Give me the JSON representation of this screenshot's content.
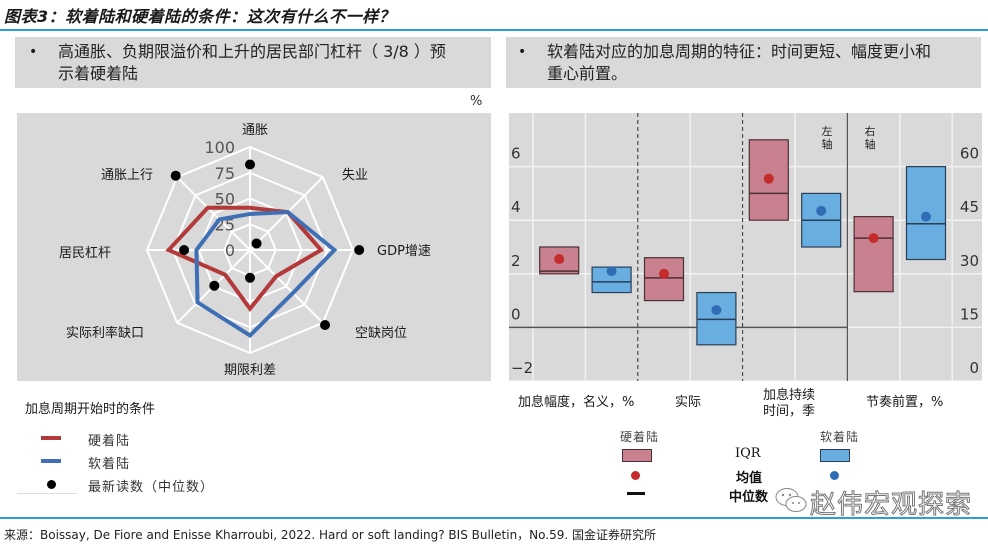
{
  "header": {
    "title": "图表3：软着陆和硬着陆的条件：这次有什么不一样？"
  },
  "left_panel": {
    "bullet": "•",
    "note_line1": "高通胀、负期限溢价和上升的居民部门杠杆（ 3/8 ）预",
    "note_line2": "示着硬着陆",
    "unit": "%",
    "legend": {
      "title": "加息周期开始时的条件",
      "items": [
        {
          "label": "硬着陆",
          "color": "#b33a3a",
          "marker": "line"
        },
        {
          "label": "软着陆",
          "color": "#3f6fb5",
          "marker": "line"
        },
        {
          "label": "最新读数（中位数）",
          "color": "#000000",
          "marker": "dot"
        }
      ]
    }
  },
  "right_panel": {
    "bullet": "•",
    "note_line1": "软着陆对应的加息周期的特征：时间更短、幅度更小和",
    "note_line2": "重心前置。",
    "left_axis_tag": "左轴",
    "right_axis_tag": "右轴",
    "legend": {
      "hard_label": "硬着陆",
      "soft_label": "软着陆",
      "iqr_label": "IQR",
      "mean_label": "均值",
      "median_label": "中位数"
    }
  },
  "footer": {
    "source": "来源：Boissay, De Fiore and Enisse Kharroubi, 2022. Hard or soft landing? BIS Bulletin，No.59. 国金证券研究所"
  },
  "watermark": {
    "text": "赵伟宏观探索"
  },
  "colors": {
    "hard_line": "#b33a3a",
    "soft_line": "#3f6fb5",
    "hard_box": "#c9808f",
    "soft_box": "#68aee0",
    "hard_dot": "#c42b2b",
    "soft_dot": "#2f6cb3",
    "panel_bg": "#d9d9d9",
    "accent_rule": "#2a9fd8"
  },
  "chart_data": [
    {
      "type": "radar",
      "title": "加息周期开始时的条件",
      "unit": "%",
      "axes": [
        "通胀",
        "失业",
        "GDP增速",
        "空缺岗位",
        "期限利差",
        "实际利率缺口",
        "居民杠杆",
        "通胀上行"
      ],
      "ticks": [
        0,
        25,
        50,
        75,
        100
      ],
      "range": [
        0,
        100
      ],
      "series": [
        {
          "name": "硬着陆",
          "values": [
            41,
            52,
            69,
            36,
            57,
            34,
            79,
            58
          ]
        },
        {
          "name": "软着陆",
          "values": [
            35,
            52,
            82,
            59,
            83,
            72,
            52,
            42
          ]
        },
        {
          "name": "最新读数（中位数）",
          "values": [
            83,
            9,
            106,
            103,
            27,
            49,
            64,
            102
          ],
          "style": "dots"
        }
      ],
      "legend_position": "bottom-left"
    },
    {
      "type": "boxplot",
      "categories": [
        "加息幅度，名义，%",
        "实际",
        "加息持续时间，季",
        "节奏前置，%"
      ],
      "category_axis": [
        "left",
        "left",
        "left",
        "right"
      ],
      "left_axis": {
        "ticks": [
          -2,
          0,
          2,
          4,
          6
        ],
        "range": [
          -2,
          8
        ]
      },
      "right_axis": {
        "ticks": [
          0,
          15,
          30,
          45,
          60
        ],
        "range": [
          0,
          75
        ]
      },
      "series": [
        {
          "name": "硬着陆",
          "boxes": [
            {
              "q1": 2.0,
              "q3": 3.0,
              "median": 2.1,
              "mean": 2.55
            },
            {
              "q1": 1.0,
              "q3": 2.6,
              "median": 1.85,
              "mean": 2.0
            },
            {
              "q1": 4.0,
              "q3": 7.0,
              "median": 5.0,
              "mean": 5.55
            },
            {
              "q1": 25,
              "q3": 46,
              "median": 40,
              "mean": 40
            }
          ]
        },
        {
          "name": "软着陆",
          "boxes": [
            {
              "q1": 1.3,
              "q3": 2.25,
              "median": 1.7,
              "mean": 2.1
            },
            {
              "q1": -0.65,
              "q3": 1.3,
              "median": 0.3,
              "mean": 0.65
            },
            {
              "q1": 3.0,
              "q3": 5.0,
              "median": 4.0,
              "mean": 4.35
            },
            {
              "q1": 34,
              "q3": 60,
              "median": 44,
              "mean": 46
            }
          ]
        }
      ],
      "legend": [
        "IQR",
        "均值",
        "中位数"
      ],
      "grid": true
    }
  ]
}
